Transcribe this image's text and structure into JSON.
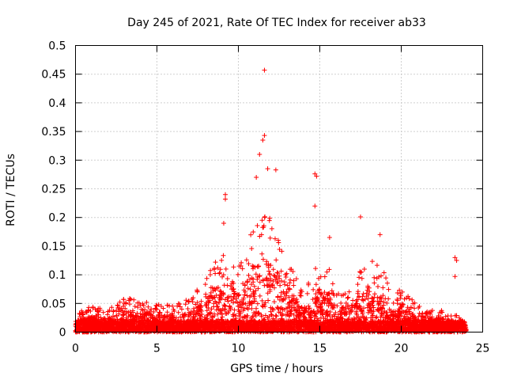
{
  "chart_data": {
    "type": "scatter",
    "title": "Day 245 of 2021, Rate Of TEC Index for receiver ab33",
    "xlabel": "GPS time / hours",
    "ylabel": "ROTI / TECUs",
    "xlim": [
      0,
      25
    ],
    "ylim": [
      0,
      0.5
    ],
    "xticks": [
      0,
      5,
      10,
      15,
      20,
      25
    ],
    "xtick_labels": [
      "0",
      "5",
      "10",
      "15",
      "20",
      "25"
    ],
    "yticks": [
      0,
      0.05,
      0.1,
      0.15,
      0.2,
      0.25,
      0.3,
      0.35,
      0.4,
      0.45,
      0.5
    ],
    "ytick_labels": [
      "0",
      "0.05",
      "0.1",
      "0.15",
      "0.2",
      "0.25",
      "0.3",
      "0.35",
      "0.4",
      "0.45",
      "0.5"
    ],
    "grid": true,
    "marker": "+",
    "color": "#ff0000",
    "x_range_hours": [
      0,
      24
    ],
    "envelope": {
      "hour": [
        0,
        1,
        2,
        3,
        4,
        5,
        6,
        7,
        8,
        8.5,
        9,
        9.5,
        10,
        10.5,
        11,
        11.5,
        12,
        12.5,
        13,
        13.5,
        14,
        14.5,
        15,
        15.5,
        16,
        16.5,
        17,
        17.5,
        18,
        18.5,
        19,
        19.5,
        20,
        20.5,
        21,
        21.5,
        22,
        22.5,
        23,
        23.5,
        24
      ],
      "typical_max_roti": [
        0.035,
        0.045,
        0.04,
        0.06,
        0.06,
        0.05,
        0.05,
        0.06,
        0.09,
        0.13,
        0.15,
        0.13,
        0.12,
        0.16,
        0.2,
        0.23,
        0.2,
        0.17,
        0.14,
        0.1,
        0.08,
        0.1,
        0.13,
        0.12,
        0.08,
        0.07,
        0.08,
        0.11,
        0.13,
        0.14,
        0.1,
        0.06,
        0.08,
        0.06,
        0.05,
        0.045,
        0.04,
        0.04,
        0.035,
        0.03,
        0.025
      ]
    },
    "notable_points": [
      {
        "x": 11.6,
        "y": 0.457
      },
      {
        "x": 11.6,
        "y": 0.343
      },
      {
        "x": 11.5,
        "y": 0.335
      },
      {
        "x": 11.3,
        "y": 0.31
      },
      {
        "x": 11.8,
        "y": 0.285
      },
      {
        "x": 12.3,
        "y": 0.283
      },
      {
        "x": 14.7,
        "y": 0.276
      },
      {
        "x": 14.8,
        "y": 0.272
      },
      {
        "x": 11.1,
        "y": 0.27
      },
      {
        "x": 9.2,
        "y": 0.24
      },
      {
        "x": 9.2,
        "y": 0.232
      },
      {
        "x": 14.7,
        "y": 0.22
      },
      {
        "x": 17.5,
        "y": 0.201
      },
      {
        "x": 9.1,
        "y": 0.19
      },
      {
        "x": 15.6,
        "y": 0.165
      },
      {
        "x": 18.7,
        "y": 0.17
      },
      {
        "x": 23.3,
        "y": 0.13
      },
      {
        "x": 23.4,
        "y": 0.125
      },
      {
        "x": 23.3,
        "y": 0.097
      }
    ]
  }
}
